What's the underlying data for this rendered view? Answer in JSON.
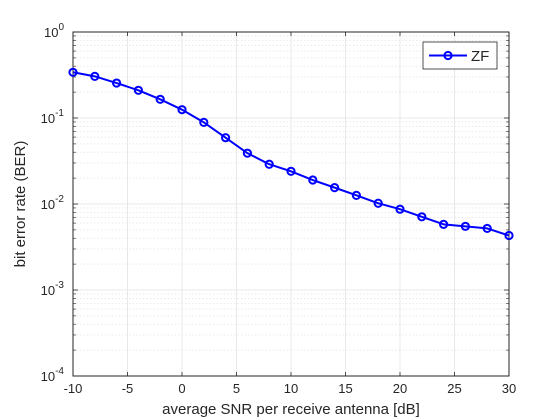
{
  "chart_data": {
    "type": "line",
    "xlabel": "average SNR per receive antenna [dB]",
    "ylabel": "bit error rate (BER)",
    "xlim": [
      -10,
      30
    ],
    "ylim": [
      0.0001,
      1
    ],
    "yscale": "log",
    "grid": true,
    "minor_grid": true,
    "legend_position": "top-right",
    "x_ticks": [
      -10,
      -5,
      0,
      5,
      10,
      15,
      20,
      25,
      30
    ],
    "x_tick_labels": [
      "-10",
      "-5",
      "0",
      "5",
      "10",
      "15",
      "20",
      "25",
      "30"
    ],
    "y_ticks": [
      {
        "value": 1,
        "base": "10",
        "exp": "0"
      },
      {
        "value": 0.1,
        "base": "10",
        "exp": "-1"
      },
      {
        "value": 0.01,
        "base": "10",
        "exp": "-2"
      },
      {
        "value": 0.001,
        "base": "10",
        "exp": "-3"
      },
      {
        "value": 0.0001,
        "base": "10",
        "exp": "-4"
      }
    ],
    "x": [
      -10,
      -8,
      -6,
      -4,
      -2,
      0,
      2,
      4,
      6,
      8,
      10,
      12,
      14,
      16,
      18,
      20,
      22,
      24,
      26,
      28,
      30
    ],
    "series": [
      {
        "name": "ZF",
        "color": "#0000ff",
        "marker": "circle",
        "values": [
          0.34,
          0.305,
          0.255,
          0.21,
          0.165,
          0.125,
          0.089,
          0.059,
          0.039,
          0.029,
          0.024,
          0.019,
          0.0155,
          0.0126,
          0.0102,
          0.0087,
          0.0071,
          0.0058,
          0.0055,
          0.0052,
          0.0043
        ]
      }
    ]
  }
}
